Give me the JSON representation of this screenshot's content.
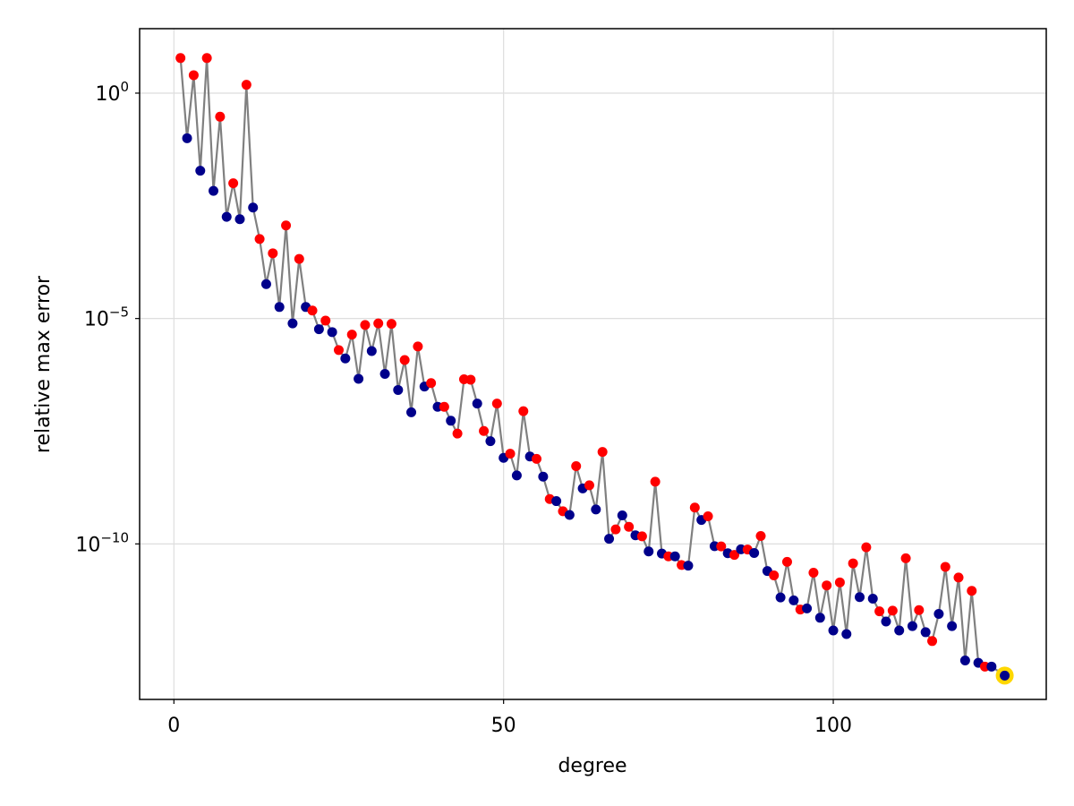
{
  "chart_data": {
    "type": "scatter",
    "xlabel": "degree",
    "ylabel": "relative max error",
    "xscale": "linear",
    "yscale": "log10",
    "xlim": [
      -5.2,
      132.3
    ],
    "ylim_log10": [
      -13.45,
      1.43
    ],
    "grid": true,
    "x_ticks": [
      {
        "value": 0,
        "label": "0"
      },
      {
        "value": 50,
        "label": "50"
      },
      {
        "value": 100,
        "label": "100"
      }
    ],
    "y_ticks": [
      {
        "exponent": 0,
        "base": "10",
        "sup": "0"
      },
      {
        "exponent": -5,
        "base": "10",
        "sup": "−5"
      },
      {
        "exponent": -10,
        "base": "10",
        "sup": "−10"
      }
    ],
    "colors": {
      "line": "#808080",
      "red": "#ff0000",
      "blue": "#00008b",
      "highlight": "#ffd700",
      "grid": "#dedede"
    },
    "points": [
      {
        "x": 1,
        "y": 6.0,
        "c": "red"
      },
      {
        "x": 2,
        "y": 0.1,
        "c": "blue"
      },
      {
        "x": 3,
        "y": 2.5,
        "c": "red"
      },
      {
        "x": 4,
        "y": 0.019,
        "c": "blue"
      },
      {
        "x": 5,
        "y": 6.0,
        "c": "red"
      },
      {
        "x": 6,
        "y": 0.0068,
        "c": "blue"
      },
      {
        "x": 7,
        "y": 0.3,
        "c": "red"
      },
      {
        "x": 8,
        "y": 0.0018,
        "c": "blue"
      },
      {
        "x": 9,
        "y": 0.01,
        "c": "red"
      },
      {
        "x": 10,
        "y": 0.0016,
        "c": "blue"
      },
      {
        "x": 11,
        "y": 1.53,
        "c": "red"
      },
      {
        "x": 12,
        "y": 0.0029,
        "c": "blue"
      },
      {
        "x": 13,
        "y": 0.00058,
        "c": "red"
      },
      {
        "x": 14,
        "y": 5.8e-05,
        "c": "blue"
      },
      {
        "x": 15,
        "y": 0.00028,
        "c": "red"
      },
      {
        "x": 16,
        "y": 1.8e-05,
        "c": "blue"
      },
      {
        "x": 17,
        "y": 0.00116,
        "c": "red"
      },
      {
        "x": 18,
        "y": 7.8e-06,
        "c": "blue"
      },
      {
        "x": 19,
        "y": 0.00021,
        "c": "red"
      },
      {
        "x": 20,
        "y": 1.8e-05,
        "c": "blue"
      },
      {
        "x": 21,
        "y": 1.5e-05,
        "c": "red"
      },
      {
        "x": 22,
        "y": 5.8e-06,
        "c": "blue"
      },
      {
        "x": 23,
        "y": 9e-06,
        "c": "red"
      },
      {
        "x": 24,
        "y": 5e-06,
        "c": "blue"
      },
      {
        "x": 25,
        "y": 2e-06,
        "c": "red"
      },
      {
        "x": 26,
        "y": 1.3e-06,
        "c": "blue"
      },
      {
        "x": 27,
        "y": 4.4e-06,
        "c": "red"
      },
      {
        "x": 28,
        "y": 4.6e-07,
        "c": "blue"
      },
      {
        "x": 29,
        "y": 7.2e-06,
        "c": "red"
      },
      {
        "x": 30,
        "y": 1.9e-06,
        "c": "blue"
      },
      {
        "x": 31,
        "y": 7.8e-06,
        "c": "red"
      },
      {
        "x": 32,
        "y": 5.9e-07,
        "c": "blue"
      },
      {
        "x": 33,
        "y": 7.6e-06,
        "c": "red"
      },
      {
        "x": 34,
        "y": 2.6e-07,
        "c": "blue"
      },
      {
        "x": 35,
        "y": 1.2e-06,
        "c": "red"
      },
      {
        "x": 36,
        "y": 8.3e-08,
        "c": "blue"
      },
      {
        "x": 37,
        "y": 2.4e-06,
        "c": "red"
      },
      {
        "x": 38,
        "y": 3.1e-07,
        "c": "blue"
      },
      {
        "x": 39,
        "y": 3.7e-07,
        "c": "red"
      },
      {
        "x": 40,
        "y": 1.1e-07,
        "c": "blue"
      },
      {
        "x": 41,
        "y": 1.1e-07,
        "c": "red"
      },
      {
        "x": 42,
        "y": 5.4e-08,
        "c": "blue"
      },
      {
        "x": 43,
        "y": 2.8e-08,
        "c": "red"
      },
      {
        "x": 44,
        "y": 4.5e-07,
        "c": "red"
      },
      {
        "x": 45,
        "y": 4.4e-07,
        "c": "red"
      },
      {
        "x": 46,
        "y": 1.3e-07,
        "c": "blue"
      },
      {
        "x": 47,
        "y": 3.2e-08,
        "c": "red"
      },
      {
        "x": 48,
        "y": 1.9e-08,
        "c": "blue"
      },
      {
        "x": 49,
        "y": 1.3e-07,
        "c": "red"
      },
      {
        "x": 50,
        "y": 8.1e-09,
        "c": "blue"
      },
      {
        "x": 51,
        "y": 1e-08,
        "c": "red"
      },
      {
        "x": 52,
        "y": 3.3e-09,
        "c": "blue"
      },
      {
        "x": 53,
        "y": 8.8e-08,
        "c": "red"
      },
      {
        "x": 54,
        "y": 8.7e-09,
        "c": "blue"
      },
      {
        "x": 55,
        "y": 7.7e-09,
        "c": "red"
      },
      {
        "x": 56,
        "y": 3.1e-09,
        "c": "blue"
      },
      {
        "x": 57,
        "y": 9.9e-10,
        "c": "red"
      },
      {
        "x": 58,
        "y": 8.9e-10,
        "c": "blue"
      },
      {
        "x": 59,
        "y": 5.3e-10,
        "c": "red"
      },
      {
        "x": 60,
        "y": 4.4e-10,
        "c": "blue"
      },
      {
        "x": 61,
        "y": 5.3e-09,
        "c": "red"
      },
      {
        "x": 62,
        "y": 1.7e-09,
        "c": "blue"
      },
      {
        "x": 63,
        "y": 2e-09,
        "c": "red"
      },
      {
        "x": 64,
        "y": 5.8e-10,
        "c": "blue"
      },
      {
        "x": 65,
        "y": 1.1e-08,
        "c": "red"
      },
      {
        "x": 66,
        "y": 1.3e-10,
        "c": "blue"
      },
      {
        "x": 67,
        "y": 2.1e-10,
        "c": "red"
      },
      {
        "x": 68,
        "y": 4.3e-10,
        "c": "blue"
      },
      {
        "x": 69,
        "y": 2.4e-10,
        "c": "red"
      },
      {
        "x": 70,
        "y": 1.55e-10,
        "c": "blue"
      },
      {
        "x": 71,
        "y": 1.47e-10,
        "c": "red"
      },
      {
        "x": 72,
        "y": 6.8e-11,
        "c": "blue"
      },
      {
        "x": 73,
        "y": 2.4e-09,
        "c": "red"
      },
      {
        "x": 74,
        "y": 6.1e-11,
        "c": "blue"
      },
      {
        "x": 75,
        "y": 5.3e-11,
        "c": "red"
      },
      {
        "x": 76,
        "y": 5.3e-11,
        "c": "blue"
      },
      {
        "x": 77,
        "y": 3.4e-11,
        "c": "red"
      },
      {
        "x": 78,
        "y": 3.3e-11,
        "c": "blue"
      },
      {
        "x": 79,
        "y": 6.4e-10,
        "c": "red"
      },
      {
        "x": 80,
        "y": 3.4e-10,
        "c": "blue"
      },
      {
        "x": 81,
        "y": 4.1e-10,
        "c": "red"
      },
      {
        "x": 82,
        "y": 8.9e-11,
        "c": "blue"
      },
      {
        "x": 83,
        "y": 8.8e-11,
        "c": "red"
      },
      {
        "x": 84,
        "y": 6.2e-11,
        "c": "blue"
      },
      {
        "x": 85,
        "y": 5.7e-11,
        "c": "red"
      },
      {
        "x": 86,
        "y": 7.6e-11,
        "c": "blue"
      },
      {
        "x": 87,
        "y": 7.5e-11,
        "c": "red"
      },
      {
        "x": 88,
        "y": 6.3e-11,
        "c": "blue"
      },
      {
        "x": 89,
        "y": 1.5e-10,
        "c": "red"
      },
      {
        "x": 90,
        "y": 2.5e-11,
        "c": "blue"
      },
      {
        "x": 91,
        "y": 2e-11,
        "c": "red"
      },
      {
        "x": 92,
        "y": 6.5e-12,
        "c": "blue"
      },
      {
        "x": 93,
        "y": 4e-11,
        "c": "red"
      },
      {
        "x": 94,
        "y": 5.6e-12,
        "c": "blue"
      },
      {
        "x": 95,
        "y": 3.5e-12,
        "c": "red"
      },
      {
        "x": 96,
        "y": 3.7e-12,
        "c": "blue"
      },
      {
        "x": 97,
        "y": 2.3e-11,
        "c": "red"
      },
      {
        "x": 98,
        "y": 2.3e-12,
        "c": "blue"
      },
      {
        "x": 99,
        "y": 1.2e-11,
        "c": "red"
      },
      {
        "x": 100,
        "y": 1.2e-12,
        "c": "blue"
      },
      {
        "x": 101,
        "y": 1.4e-11,
        "c": "red"
      },
      {
        "x": 102,
        "y": 1e-12,
        "c": "blue"
      },
      {
        "x": 103,
        "y": 3.7e-11,
        "c": "red"
      },
      {
        "x": 104,
        "y": 6.6e-12,
        "c": "blue"
      },
      {
        "x": 105,
        "y": 8.4e-11,
        "c": "red"
      },
      {
        "x": 106,
        "y": 6.1e-12,
        "c": "blue"
      },
      {
        "x": 107,
        "y": 3.2e-12,
        "c": "red"
      },
      {
        "x": 108,
        "y": 1.9e-12,
        "c": "blue"
      },
      {
        "x": 109,
        "y": 3.3e-12,
        "c": "red"
      },
      {
        "x": 110,
        "y": 1.2e-12,
        "c": "blue"
      },
      {
        "x": 111,
        "y": 4.8e-11,
        "c": "red"
      },
      {
        "x": 112,
        "y": 1.5e-12,
        "c": "blue"
      },
      {
        "x": 113,
        "y": 3.4e-12,
        "c": "red"
      },
      {
        "x": 114,
        "y": 1.1e-12,
        "c": "blue"
      },
      {
        "x": 115,
        "y": 7e-13,
        "c": "red"
      },
      {
        "x": 116,
        "y": 2.8e-12,
        "c": "blue"
      },
      {
        "x": 117,
        "y": 3.1e-11,
        "c": "red"
      },
      {
        "x": 118,
        "y": 1.5e-12,
        "c": "blue"
      },
      {
        "x": 119,
        "y": 1.8e-11,
        "c": "red"
      },
      {
        "x": 120,
        "y": 2.6e-13,
        "c": "blue"
      },
      {
        "x": 121,
        "y": 9.1e-12,
        "c": "red"
      },
      {
        "x": 122,
        "y": 2.3e-13,
        "c": "blue"
      },
      {
        "x": 123,
        "y": 1.9e-13,
        "c": "red"
      },
      {
        "x": 124,
        "y": 1.9e-13,
        "c": "blue"
      },
      {
        "x": 126,
        "y": 1.2e-13,
        "c": "blue",
        "highlight": true
      }
    ]
  }
}
